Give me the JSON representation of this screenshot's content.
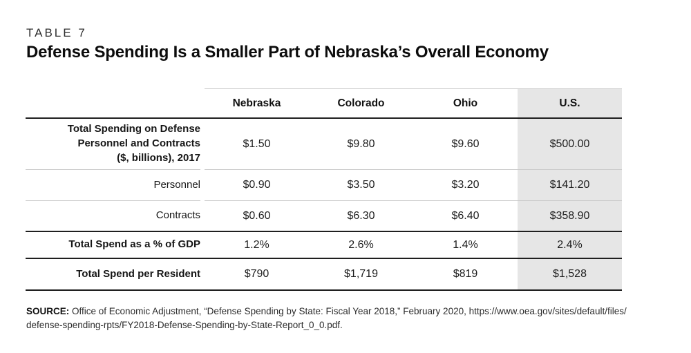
{
  "header": {
    "kicker": "TABLE 7",
    "title": "Defense Spending Is a Smaller Part of Nebraska’s Overall Economy"
  },
  "table": {
    "columns": [
      "Nebraska",
      "Colorado",
      "Ohio",
      "U.S."
    ],
    "highlight_column": "U.S.",
    "highlight_color": "#e6e6e6",
    "rows": [
      {
        "label": "Total Spending on Defense\nPersonnel and Contracts\n($, billions), 2017",
        "values": [
          "$1.50",
          "$9.80",
          "$9.60",
          "$500.00"
        ]
      },
      {
        "label": "Personnel",
        "values": [
          "$0.90",
          "$3.50",
          "$3.20",
          "$141.20"
        ]
      },
      {
        "label": "Contracts",
        "values": [
          "$0.60",
          "$6.30",
          "$6.40",
          "$358.90"
        ]
      },
      {
        "label": "Total Spend as a % of GDP",
        "values": [
          "1.2%",
          "2.6%",
          "1.4%",
          "2.4%"
        ]
      },
      {
        "label": "Total Spend per Resident",
        "values": [
          "$790",
          "$1,719",
          "$819",
          "$1,528"
        ]
      }
    ]
  },
  "source": {
    "label": "SOURCE:",
    "text": " Office of Economic Adjustment, “Defense Spending by State: Fiscal Year 2018,” February 2020, https://www.oea.gov/sites/default/files/\ndefense-spending-rpts/FY2018-Defense-Spending-by-State-Report_0_0.pdf."
  }
}
